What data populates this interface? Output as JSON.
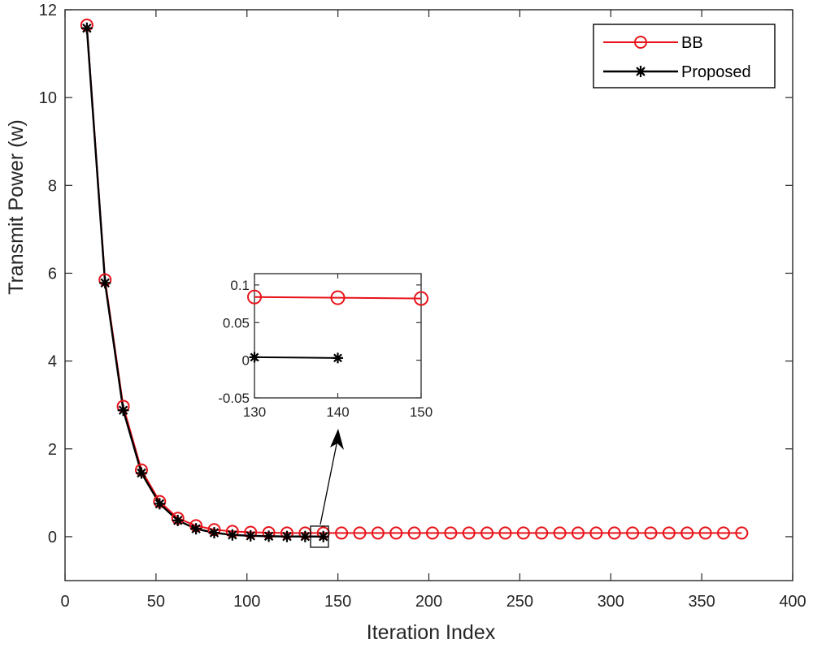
{
  "chart_data": [
    {
      "type": "line",
      "title": "",
      "xlabel": "Iteration Index",
      "ylabel": "Transmit Power (w)",
      "xlim": [
        0,
        400
      ],
      "ylim": [
        -1,
        12
      ],
      "xticks": [
        0,
        50,
        100,
        150,
        200,
        250,
        300,
        350,
        400
      ],
      "yticks": [
        0,
        2,
        4,
        6,
        8,
        10,
        12
      ],
      "legend_position": "top-right",
      "series": [
        {
          "name": "BB",
          "color": "#e8141b",
          "marker": "circle",
          "x": [
            12,
            22,
            32,
            42,
            52,
            62,
            72,
            82,
            92,
            102,
            112,
            122,
            132,
            142,
            152,
            162,
            172,
            182,
            192,
            202,
            212,
            222,
            232,
            242,
            252,
            262,
            272,
            282,
            292,
            302,
            312,
            322,
            332,
            342,
            352,
            362,
            372
          ],
          "values": [
            11.65,
            5.85,
            2.97,
            1.52,
            0.8,
            0.42,
            0.25,
            0.16,
            0.12,
            0.1,
            0.09,
            0.085,
            0.084,
            0.083,
            0.083,
            0.083,
            0.083,
            0.083,
            0.083,
            0.083,
            0.083,
            0.083,
            0.083,
            0.083,
            0.083,
            0.083,
            0.083,
            0.083,
            0.083,
            0.083,
            0.083,
            0.083,
            0.083,
            0.083,
            0.083,
            0.083,
            0.083
          ]
        },
        {
          "name": "Proposed",
          "color": "#000000",
          "marker": "asterisk",
          "x": [
            12,
            22,
            32,
            42,
            52,
            62,
            72,
            82,
            92,
            102,
            112,
            122,
            132,
            142
          ],
          "values": [
            11.58,
            5.78,
            2.88,
            1.45,
            0.75,
            0.37,
            0.18,
            0.09,
            0.04,
            0.02,
            0.01,
            0.005,
            0.004,
            0.003
          ]
        }
      ],
      "annotations": [
        {
          "type": "zoom-box",
          "text": "",
          "x_range": [
            130,
            150
          ],
          "y_range": [
            -0.05,
            0.1
          ]
        },
        {
          "type": "arrow",
          "text": "",
          "points_from": "zoom-box",
          "points_to": "inset"
        }
      ]
    },
    {
      "type": "line",
      "title": "",
      "xlabel": "",
      "ylabel": "",
      "role": "inset",
      "xlim": [
        130,
        150
      ],
      "ylim": [
        -0.05,
        0.115
      ],
      "xticks": [
        130,
        140,
        150
      ],
      "xtick_labels": [
        "130",
        "140",
        "150"
      ],
      "yticks": [
        -0.05,
        0,
        0.05,
        0.1
      ],
      "ytick_labels": [
        "-0.05",
        "0",
        "0.05",
        "0.1"
      ],
      "series": [
        {
          "name": "BB",
          "color": "#e8141b",
          "marker": "circle",
          "x": [
            130,
            140,
            150
          ],
          "values": [
            0.084,
            0.083,
            0.082
          ]
        },
        {
          "name": "Proposed",
          "color": "#000000",
          "marker": "asterisk",
          "x": [
            130,
            140
          ],
          "values": [
            0.004,
            0.003
          ]
        }
      ]
    }
  ]
}
